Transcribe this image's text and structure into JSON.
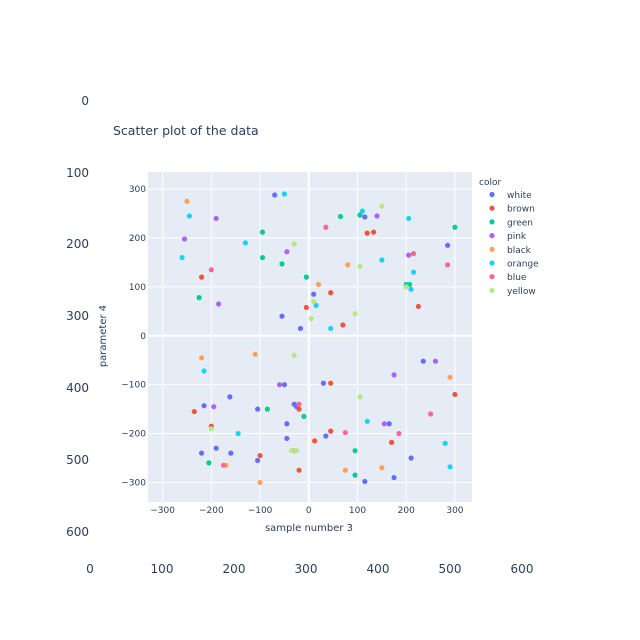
{
  "chart_data": {
    "type": "scatter",
    "title": "Scatter plot of the data",
    "xlabel": "sample number 3",
    "ylabel": "parameter 4",
    "xlim": [
      -330,
      335
    ],
    "ylim": [
      -340,
      335
    ],
    "xticks": [
      -300,
      -200,
      -100,
      0,
      100,
      200,
      300
    ],
    "yticks": [
      -300,
      -200,
      -100,
      0,
      100,
      200,
      300
    ],
    "outer_x_ticks": [
      0,
      100,
      200,
      300,
      400,
      500,
      600
    ],
    "outer_y_ticks": [
      0,
      100,
      200,
      300,
      400,
      500,
      600
    ],
    "legend_title": "color",
    "legend_position": "right",
    "grid": true,
    "series": [
      {
        "name": "white",
        "color": "#636efa",
        "points": [
          [
            -70,
            288
          ],
          [
            115,
            243
          ],
          [
            285,
            185
          ],
          [
            -215,
            -143
          ],
          [
            -160,
            -240
          ],
          [
            -105,
            -255
          ],
          [
            -162,
            -125
          ],
          [
            -50,
            -100
          ],
          [
            -45,
            -210
          ],
          [
            -17,
            15
          ],
          [
            10,
            85
          ],
          [
            35,
            -205
          ],
          [
            -190,
            -230
          ],
          [
            -45,
            -180
          ],
          [
            30,
            -97
          ],
          [
            165,
            -180
          ],
          [
            175,
            -290
          ],
          [
            210,
            -250
          ],
          [
            235,
            -52
          ],
          [
            -25,
            -145
          ],
          [
            -105,
            -150
          ],
          [
            -55,
            40
          ],
          [
            -30,
            -140
          ],
          [
            115,
            -298
          ],
          [
            -220,
            -240
          ]
        ]
      },
      {
        "name": "brown",
        "color": "#EF553B",
        "points": [
          [
            -220,
            120
          ],
          [
            -100,
            -245
          ],
          [
            -20,
            -150
          ],
          [
            120,
            210
          ],
          [
            133,
            212
          ],
          [
            -5,
            58
          ],
          [
            45,
            88
          ],
          [
            70,
            22
          ],
          [
            45,
            -97
          ],
          [
            -20,
            -275
          ],
          [
            12,
            -215
          ],
          [
            45,
            -195
          ],
          [
            170,
            -218
          ],
          [
            225,
            60
          ],
          [
            -200,
            -185
          ],
          [
            300,
            -120
          ],
          [
            -235,
            -155
          ]
        ]
      },
      {
        "name": "green",
        "color": "#00cc96",
        "points": [
          [
            -95,
            212
          ],
          [
            -95,
            160
          ],
          [
            -55,
            147
          ],
          [
            -5,
            120
          ],
          [
            -225,
            78
          ],
          [
            65,
            244
          ],
          [
            105,
            247
          ],
          [
            200,
            105
          ],
          [
            207,
            105
          ],
          [
            300,
            222
          ],
          [
            -205,
            -260
          ],
          [
            95,
            -235
          ],
          [
            95,
            -285
          ],
          [
            -10,
            -165
          ],
          [
            -85,
            -150
          ]
        ]
      },
      {
        "name": "pink",
        "color": "#ab63fa",
        "points": [
          [
            -255,
            198
          ],
          [
            -190,
            240
          ],
          [
            -45,
            172
          ],
          [
            -185,
            65
          ],
          [
            140,
            245
          ],
          [
            205,
            165
          ],
          [
            260,
            -52
          ],
          [
            175,
            -80
          ],
          [
            155,
            -180
          ],
          [
            -60,
            -100
          ],
          [
            -195,
            -145
          ]
        ]
      },
      {
        "name": "black",
        "color": "#FFA15A",
        "points": [
          [
            -250,
            275
          ],
          [
            -220,
            -45
          ],
          [
            20,
            105
          ],
          [
            80,
            145
          ],
          [
            -110,
            -38
          ],
          [
            -30,
            -235
          ],
          [
            75,
            -275
          ],
          [
            150,
            -270
          ],
          [
            290,
            -85
          ],
          [
            -100,
            -300
          ],
          [
            -170,
            -265
          ]
        ]
      },
      {
        "name": "orange",
        "color": "#19d3f3",
        "points": [
          [
            -50,
            290
          ],
          [
            -245,
            245
          ],
          [
            -130,
            190
          ],
          [
            -260,
            160
          ],
          [
            110,
            255
          ],
          [
            150,
            155
          ],
          [
            205,
            240
          ],
          [
            215,
            130
          ],
          [
            210,
            95
          ],
          [
            15,
            62
          ],
          [
            45,
            15
          ],
          [
            -215,
            -72
          ],
          [
            -145,
            -200
          ],
          [
            120,
            -175
          ],
          [
            280,
            -220
          ],
          [
            290,
            -268
          ]
        ]
      },
      {
        "name": "blue",
        "color": "#FF6692",
        "points": [
          [
            35,
            222
          ],
          [
            -200,
            135
          ],
          [
            215,
            168
          ],
          [
            285,
            145
          ],
          [
            -175,
            -265
          ],
          [
            75,
            -198
          ],
          [
            185,
            -200
          ],
          [
            250,
            -160
          ],
          [
            -20,
            -140
          ]
        ]
      },
      {
        "name": "yellow",
        "color": "#B6E880",
        "points": [
          [
            -30,
            188
          ],
          [
            150,
            265
          ],
          [
            105,
            142
          ],
          [
            95,
            45
          ],
          [
            200,
            100
          ],
          [
            5,
            35
          ],
          [
            10,
            70
          ],
          [
            -30,
            -40
          ],
          [
            105,
            -125
          ],
          [
            -200,
            -190
          ],
          [
            -25,
            -235
          ],
          [
            -35,
            -235
          ]
        ]
      }
    ]
  }
}
